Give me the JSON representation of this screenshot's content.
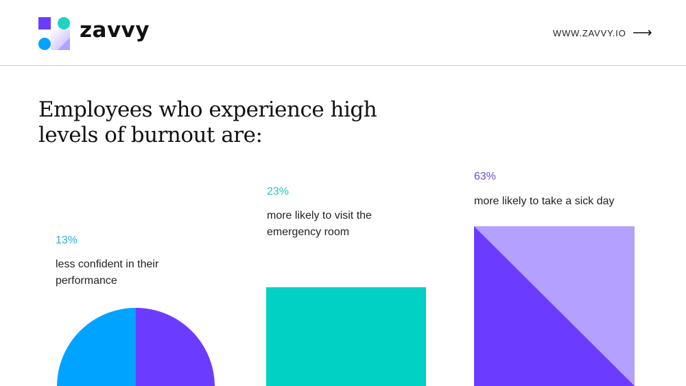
{
  "header": {
    "brand": "zavvy",
    "website": "WWW.ZAVVY.IO",
    "arrow_icon": "arrow-right-icon"
  },
  "title": "Employees who experience high levels of burnout are:",
  "stats": [
    {
      "value": "13%",
      "label": "less confident in their performance",
      "color": "#2bb0e0"
    },
    {
      "value": "23%",
      "label": "more likely to visit the emergency room",
      "color": "#1ec8bd"
    },
    {
      "value": "63%",
      "label": "more likely to take a sick day",
      "color": "#6a4cdc"
    }
  ],
  "colors": {
    "blue": "#00a3ff",
    "purple": "#6b3cff",
    "teal": "#00d1c4",
    "lavender": "#b3a0ff"
  }
}
